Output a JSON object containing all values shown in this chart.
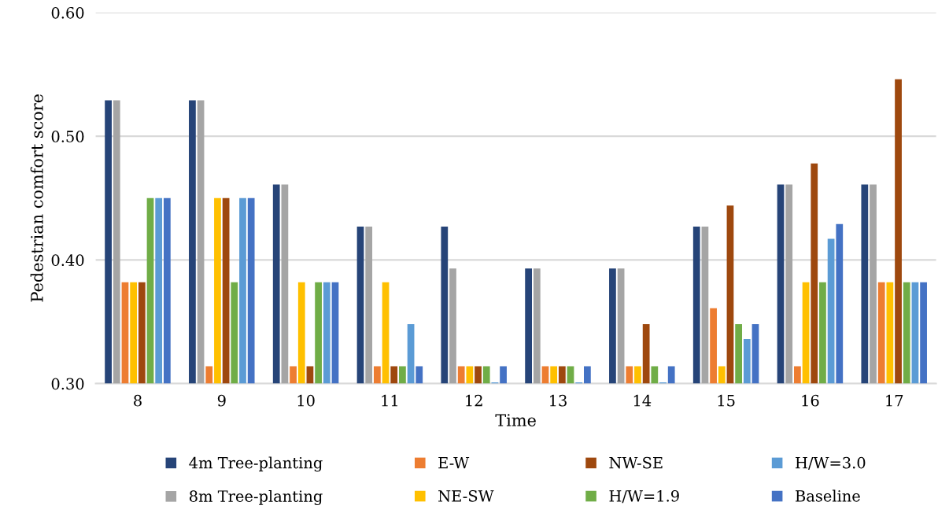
{
  "chart_data": {
    "type": "bar",
    "xlabel": "Time",
    "ylabel": "Pedestrian comfort score",
    "categories": [
      "8",
      "9",
      "10",
      "11",
      "12",
      "13",
      "14",
      "15",
      "16",
      "17"
    ],
    "series": [
      {
        "name": "4m Tree-planting",
        "color": "#264478",
        "values": [
          0.529,
          0.529,
          0.461,
          0.427,
          0.427,
          0.393,
          0.393,
          0.427,
          0.461,
          0.461
        ]
      },
      {
        "name": "8m Tree-planting",
        "color": "#a5a5a5",
        "values": [
          0.529,
          0.529,
          0.461,
          0.427,
          0.393,
          0.393,
          0.393,
          0.427,
          0.461,
          0.461
        ]
      },
      {
        "name": "E-W",
        "color": "#ed7d31",
        "values": [
          0.382,
          0.314,
          0.314,
          0.314,
          0.314,
          0.314,
          0.314,
          0.361,
          0.314,
          0.382
        ]
      },
      {
        "name": "NE-SW",
        "color": "#ffc000",
        "values": [
          0.382,
          0.45,
          0.382,
          0.382,
          0.314,
          0.314,
          0.314,
          0.314,
          0.382,
          0.382
        ]
      },
      {
        "name": "NW-SE",
        "color": "#9e480e",
        "values": [
          0.382,
          0.45,
          0.314,
          0.314,
          0.314,
          0.314,
          0.348,
          0.444,
          0.478,
          0.546
        ]
      },
      {
        "name": "H/W=1.9",
        "color": "#70ad47",
        "values": [
          0.45,
          0.382,
          0.382,
          0.314,
          0.314,
          0.314,
          0.314,
          0.348,
          0.382,
          0.382
        ]
      },
      {
        "name": "H/W=3.0",
        "color": "#5b9bd5",
        "values": [
          0.45,
          0.45,
          0.382,
          0.348,
          0.301,
          0.301,
          0.301,
          0.336,
          0.417,
          0.382
        ]
      },
      {
        "name": "Baseline",
        "color": "#4472c4",
        "values": [
          0.45,
          0.45,
          0.382,
          0.314,
          0.314,
          0.314,
          0.314,
          0.348,
          0.429,
          0.382
        ]
      }
    ],
    "ylim": [
      0.3,
      0.6
    ],
    "yticks": [
      {
        "value": 0.3,
        "label": "0.30"
      },
      {
        "value": 0.4,
        "label": "0.40"
      },
      {
        "value": 0.5,
        "label": "0.50"
      },
      {
        "value": 0.6,
        "label": "0.60"
      }
    ],
    "grid": "y",
    "legend": "bottom"
  }
}
